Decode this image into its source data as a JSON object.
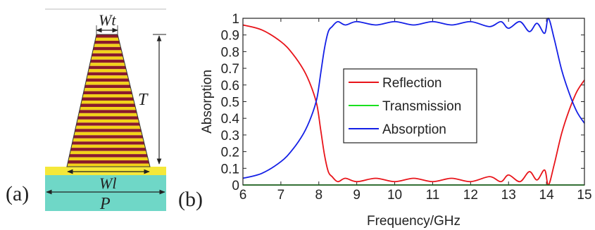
{
  "panel_a": {
    "label": "(a)",
    "dim_top_width": "Wt",
    "dim_height": "T",
    "dim_bottom_width": "Wl",
    "dim_period": "P",
    "colors": {
      "stripe_dark": "#8a1a2c",
      "stripe_light": "#f2d21a",
      "ground": "#f5e83a",
      "substrate": "#6fd7c7",
      "outline": "#222222"
    },
    "stripe_count": 21
  },
  "panel_b": {
    "label": "(b)"
  },
  "chart_data": {
    "type": "line",
    "xlabel": "Frequency/GHz",
    "ylabel": "Absorption",
    "xlim": [
      6,
      15
    ],
    "ylim": [
      0,
      1
    ],
    "xticks": [
      "6",
      "7",
      "8",
      "9",
      "10",
      "11",
      "12",
      "13",
      "14",
      "15"
    ],
    "yticks": [
      "0",
      "0.1",
      "0.2",
      "0.3",
      "0.4",
      "0.5",
      "0.6",
      "0.7",
      "0.8",
      "0.9",
      "1"
    ],
    "legend_position": "center",
    "series": [
      {
        "name": "Reflection",
        "color": "#e8141a",
        "x": [
          6,
          6.5,
          7,
          7.3,
          7.6,
          7.8,
          7.95,
          8.05,
          8.15,
          8.25,
          8.35,
          8.5,
          8.7,
          9,
          9.5,
          10,
          10.5,
          11,
          11.5,
          12,
          12.5,
          12.8,
          13,
          13.3,
          13.55,
          13.75,
          13.95,
          14.05,
          14.2,
          14.4,
          14.6,
          14.8,
          15
        ],
        "y": [
          0.96,
          0.93,
          0.86,
          0.79,
          0.69,
          0.59,
          0.48,
          0.33,
          0.18,
          0.08,
          0.05,
          0.02,
          0.04,
          0.02,
          0.04,
          0.02,
          0.04,
          0.02,
          0.04,
          0.02,
          0.05,
          0.02,
          0.06,
          0.02,
          0.08,
          0.03,
          0.09,
          0.0,
          0.12,
          0.31,
          0.45,
          0.56,
          0.63
        ]
      },
      {
        "name": "Transmission",
        "color": "#19e01f",
        "x": [
          6,
          15
        ],
        "y": [
          0,
          0
        ]
      },
      {
        "name": "Absorption",
        "color": "#1420e6",
        "x": [
          6,
          6.5,
          7,
          7.3,
          7.6,
          7.8,
          7.95,
          8.05,
          8.15,
          8.25,
          8.35,
          8.5,
          8.7,
          9,
          9.5,
          10,
          10.5,
          11,
          11.5,
          12,
          12.5,
          12.8,
          13,
          13.3,
          13.55,
          13.75,
          13.95,
          14.05,
          14.2,
          14.4,
          14.6,
          14.8,
          15
        ],
        "y": [
          0.04,
          0.07,
          0.14,
          0.21,
          0.31,
          0.41,
          0.52,
          0.67,
          0.82,
          0.92,
          0.95,
          0.98,
          0.96,
          0.98,
          0.96,
          0.98,
          0.96,
          0.98,
          0.96,
          0.98,
          0.95,
          0.98,
          0.94,
          0.98,
          0.92,
          0.97,
          0.91,
          1.0,
          0.88,
          0.69,
          0.55,
          0.44,
          0.37
        ]
      }
    ]
  }
}
